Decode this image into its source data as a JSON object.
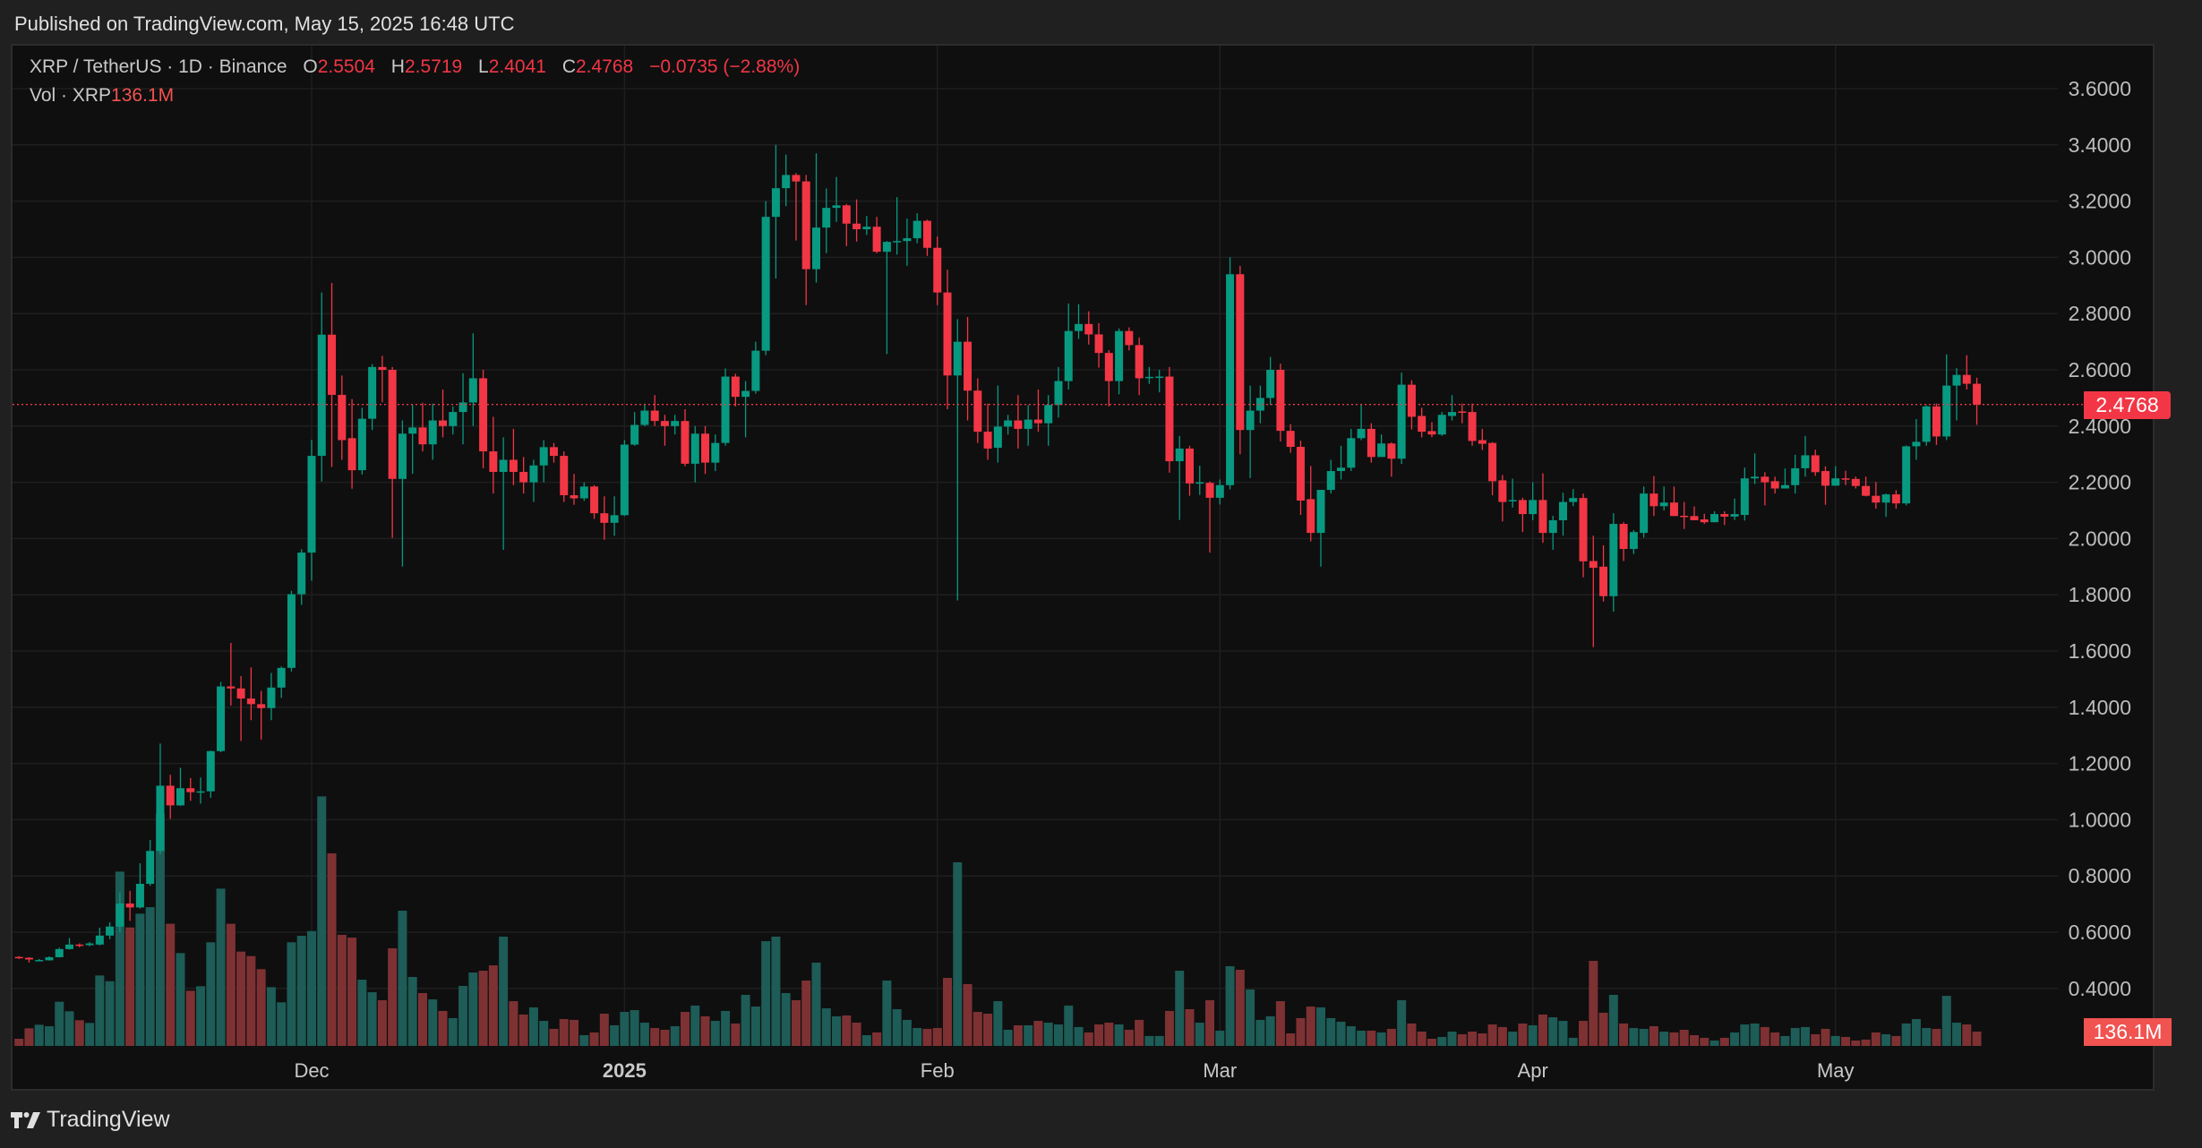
{
  "header": {
    "published": "Published on TradingView.com, May 15, 2025 16:48 UTC"
  },
  "legend": {
    "symbol": "XRP / TetherUS · 1D · Binance",
    "o_label": "O",
    "o_value": "2.5504",
    "h_label": "H",
    "h_value": "2.5719",
    "l_label": "L",
    "l_value": "2.4041",
    "c_label": "C",
    "c_value": "2.4768",
    "change": "−0.0735 (−2.88%)",
    "vol_label": "Vol · XRP",
    "vol_value": "136.1M"
  },
  "price_tag": "2.4768",
  "vol_tag": "136.1M",
  "footer": {
    "brand": "TradingView"
  },
  "colors": {
    "up": "#089981",
    "down": "#f23645",
    "vol_up": "#1d5c57",
    "vol_down": "#7e3133",
    "grid": "#1f1f1f"
  },
  "chart_data": {
    "type": "candlestick",
    "title": "XRP / TetherUS · 1D · Binance",
    "ylim": [
      0.3,
      3.7
    ],
    "y_ticks": [
      "3.6000",
      "3.4000",
      "3.2000",
      "3.0000",
      "2.8000",
      "2.6000",
      "2.4000",
      "2.2000",
      "2.0000",
      "1.8000",
      "1.6000",
      "1.4000",
      "1.2000",
      "1.0000",
      "0.8000",
      "0.6000",
      "0.4000"
    ],
    "x_ticks": [
      {
        "label": "Dec",
        "index": 29,
        "bold": false
      },
      {
        "label": "2025",
        "index": 60,
        "bold": true
      },
      {
        "label": "Feb",
        "index": 91,
        "bold": false
      },
      {
        "label": "Mar",
        "index": 119,
        "bold": false
      },
      {
        "label": "Apr",
        "index": 150,
        "bold": false
      },
      {
        "label": "May",
        "index": 180,
        "bold": false
      }
    ],
    "last_price": 2.4768,
    "ohlc": [
      [
        0.512,
        0.515,
        0.505,
        0.509
      ],
      [
        0.509,
        0.511,
        0.492,
        0.503
      ],
      [
        0.5,
        0.505,
        0.497,
        0.501
      ],
      [
        0.5,
        0.514,
        0.499,
        0.511
      ],
      [
        0.511,
        0.545,
        0.51,
        0.54
      ],
      [
        0.54,
        0.579,
        0.538,
        0.556
      ],
      [
        0.556,
        0.56,
        0.546,
        0.554
      ],
      [
        0.554,
        0.565,
        0.55,
        0.56
      ],
      [
        0.556,
        0.616,
        0.553,
        0.588
      ],
      [
        0.588,
        0.635,
        0.575,
        0.62
      ],
      [
        0.62,
        0.741,
        0.599,
        0.702
      ],
      [
        0.702,
        0.747,
        0.64,
        0.688
      ],
      [
        0.688,
        0.845,
        0.684,
        0.772
      ],
      [
        0.772,
        0.928,
        0.765,
        0.889
      ],
      [
        0.889,
        1.271,
        0.878,
        1.121
      ],
      [
        1.121,
        1.16,
        1.003,
        1.051
      ],
      [
        1.051,
        1.185,
        1.049,
        1.112
      ],
      [
        1.112,
        1.148,
        1.067,
        1.098
      ],
      [
        1.098,
        1.15,
        1.057,
        1.101
      ],
      [
        1.101,
        1.246,
        1.078,
        1.244
      ],
      [
        1.244,
        1.49,
        1.24,
        1.474
      ],
      [
        1.474,
        1.629,
        1.406,
        1.467
      ],
      [
        1.467,
        1.511,
        1.28,
        1.431
      ],
      [
        1.431,
        1.542,
        1.354,
        1.411
      ],
      [
        1.411,
        1.458,
        1.285,
        1.397
      ],
      [
        1.397,
        1.522,
        1.354,
        1.47
      ],
      [
        1.47,
        1.545,
        1.433,
        1.54
      ],
      [
        1.54,
        1.814,
        1.527,
        1.802
      ],
      [
        1.802,
        1.962,
        1.764,
        1.95
      ],
      [
        1.95,
        2.351,
        1.85,
        2.294
      ],
      [
        2.294,
        2.875,
        2.203,
        2.725
      ],
      [
        2.725,
        2.909,
        2.255,
        2.511
      ],
      [
        2.511,
        2.58,
        2.28,
        2.35
      ],
      [
        2.357,
        2.496,
        2.177,
        2.243
      ],
      [
        2.243,
        2.465,
        2.228,
        2.426
      ],
      [
        2.426,
        2.62,
        2.386,
        2.61
      ],
      [
        2.61,
        2.65,
        2.485,
        2.6
      ],
      [
        2.6,
        2.61,
        2.002,
        2.212
      ],
      [
        2.212,
        2.42,
        1.9,
        2.373
      ],
      [
        2.373,
        2.475,
        2.23,
        2.395
      ],
      [
        2.395,
        2.483,
        2.31,
        2.335
      ],
      [
        2.335,
        2.48,
        2.28,
        2.42
      ],
      [
        2.42,
        2.53,
        2.36,
        2.4
      ],
      [
        2.4,
        2.47,
        2.37,
        2.45
      ],
      [
        2.45,
        2.588,
        2.335,
        2.484
      ],
      [
        2.484,
        2.73,
        2.4,
        2.57
      ],
      [
        2.57,
        2.6,
        2.25,
        2.31
      ],
      [
        2.31,
        2.433,
        2.16,
        2.237
      ],
      [
        2.237,
        2.36,
        1.96,
        2.28
      ],
      [
        2.28,
        2.39,
        2.19,
        2.237
      ],
      [
        2.237,
        2.29,
        2.16,
        2.2
      ],
      [
        2.2,
        2.28,
        2.13,
        2.26
      ],
      [
        2.26,
        2.35,
        2.2,
        2.325
      ],
      [
        2.325,
        2.34,
        2.27,
        2.294
      ],
      [
        2.294,
        2.31,
        2.13,
        2.154
      ],
      [
        2.154,
        2.23,
        2.12,
        2.143
      ],
      [
        2.143,
        2.2,
        2.134,
        2.185
      ],
      [
        2.185,
        2.19,
        2.07,
        2.09
      ],
      [
        2.09,
        2.15,
        1.996,
        2.056
      ],
      [
        2.056,
        2.15,
        2.01,
        2.083
      ],
      [
        2.083,
        2.35,
        2.08,
        2.334
      ],
      [
        2.334,
        2.45,
        2.33,
        2.404
      ],
      [
        2.404,
        2.48,
        2.4,
        2.455
      ],
      [
        2.455,
        2.51,
        2.4,
        2.418
      ],
      [
        2.418,
        2.44,
        2.33,
        2.4
      ],
      [
        2.4,
        2.44,
        2.37,
        2.418
      ],
      [
        2.418,
        2.46,
        2.257,
        2.266
      ],
      [
        2.266,
        2.4,
        2.2,
        2.373
      ],
      [
        2.373,
        2.4,
        2.23,
        2.27
      ],
      [
        2.27,
        2.37,
        2.24,
        2.34
      ],
      [
        2.34,
        2.605,
        2.33,
        2.576
      ],
      [
        2.576,
        2.586,
        2.47,
        2.504
      ],
      [
        2.504,
        2.56,
        2.36,
        2.525
      ],
      [
        2.525,
        2.7,
        2.515,
        2.668
      ],
      [
        2.668,
        3.2,
        2.652,
        3.144
      ],
      [
        3.144,
        3.4,
        2.925,
        3.246
      ],
      [
        3.246,
        3.365,
        3.182,
        3.293
      ],
      [
        3.293,
        3.3,
        3.06,
        3.27
      ],
      [
        3.27,
        3.293,
        2.83,
        2.958
      ],
      [
        2.958,
        3.37,
        2.91,
        3.106
      ],
      [
        3.106,
        3.245,
        3.015,
        3.176
      ],
      [
        3.176,
        3.286,
        3.126,
        3.185
      ],
      [
        3.185,
        3.19,
        3.04,
        3.12
      ],
      [
        3.12,
        3.206,
        3.056,
        3.1
      ],
      [
        3.1,
        3.147,
        3.08,
        3.109
      ],
      [
        3.109,
        3.144,
        3.015,
        3.02
      ],
      [
        3.02,
        3.058,
        2.656,
        3.055
      ],
      [
        3.056,
        3.214,
        3.01,
        3.058
      ],
      [
        3.058,
        3.138,
        2.97,
        3.068
      ],
      [
        3.068,
        3.157,
        3.05,
        3.13
      ],
      [
        3.13,
        3.134,
        3.005,
        3.034
      ],
      [
        3.034,
        3.074,
        2.83,
        2.875
      ],
      [
        2.875,
        2.956,
        2.46,
        2.58
      ],
      [
        2.58,
        2.78,
        1.78,
        2.7
      ],
      [
        2.7,
        2.788,
        2.42,
        2.526
      ],
      [
        2.526,
        2.57,
        2.34,
        2.38
      ],
      [
        2.38,
        2.48,
        2.28,
        2.32
      ],
      [
        2.323,
        2.544,
        2.27,
        2.398
      ],
      [
        2.398,
        2.44,
        2.37,
        2.42
      ],
      [
        2.42,
        2.51,
        2.32,
        2.39
      ],
      [
        2.39,
        2.475,
        2.33,
        2.423
      ],
      [
        2.423,
        2.53,
        2.38,
        2.41
      ],
      [
        2.41,
        2.51,
        2.33,
        2.475
      ],
      [
        2.475,
        2.61,
        2.43,
        2.56
      ],
      [
        2.56,
        2.836,
        2.53,
        2.738
      ],
      [
        2.738,
        2.833,
        2.71,
        2.763
      ],
      [
        2.763,
        2.808,
        2.69,
        2.726
      ],
      [
        2.726,
        2.766,
        2.608,
        2.66
      ],
      [
        2.66,
        2.67,
        2.47,
        2.56
      ],
      [
        2.56,
        2.747,
        2.513,
        2.738
      ],
      [
        2.738,
        2.751,
        2.669,
        2.688
      ],
      [
        2.688,
        2.715,
        2.51,
        2.57
      ],
      [
        2.574,
        2.61,
        2.55,
        2.575
      ],
      [
        2.575,
        2.6,
        2.52,
        2.576
      ],
      [
        2.576,
        2.61,
        2.234,
        2.275
      ],
      [
        2.275,
        2.365,
        2.066,
        2.32
      ],
      [
        2.32,
        2.33,
        2.152,
        2.196
      ],
      [
        2.198,
        2.259,
        2.155,
        2.2
      ],
      [
        2.198,
        2.203,
        1.95,
        2.145
      ],
      [
        2.145,
        2.21,
        2.121,
        2.19
      ],
      [
        2.19,
        3.0,
        2.175,
        2.94
      ],
      [
        2.94,
        2.97,
        2.3,
        2.386
      ],
      [
        2.386,
        2.544,
        2.215,
        2.455
      ],
      [
        2.455,
        2.544,
        2.41,
        2.5
      ],
      [
        2.5,
        2.646,
        2.475,
        2.6
      ],
      [
        2.6,
        2.622,
        2.345,
        2.383
      ],
      [
        2.383,
        2.407,
        2.305,
        2.326
      ],
      [
        2.326,
        2.348,
        2.084,
        2.135
      ],
      [
        2.14,
        2.258,
        1.99,
        2.02
      ],
      [
        2.02,
        2.173,
        1.9,
        2.173
      ],
      [
        2.173,
        2.28,
        2.16,
        2.24
      ],
      [
        2.24,
        2.33,
        2.21,
        2.252
      ],
      [
        2.252,
        2.39,
        2.24,
        2.357
      ],
      [
        2.357,
        2.476,
        2.35,
        2.39
      ],
      [
        2.39,
        2.41,
        2.27,
        2.29
      ],
      [
        2.29,
        2.37,
        2.29,
        2.338
      ],
      [
        2.338,
        2.342,
        2.22,
        2.284
      ],
      [
        2.284,
        2.59,
        2.265,
        2.547
      ],
      [
        2.547,
        2.563,
        2.388,
        2.433
      ],
      [
        2.436,
        2.465,
        2.36,
        2.38
      ],
      [
        2.382,
        2.414,
        2.36,
        2.37
      ],
      [
        2.37,
        2.45,
        2.365,
        2.44
      ],
      [
        2.436,
        2.51,
        2.42,
        2.45
      ],
      [
        2.452,
        2.48,
        2.41,
        2.45
      ],
      [
        2.45,
        2.48,
        2.33,
        2.347
      ],
      [
        2.35,
        2.39,
        2.315,
        2.337
      ],
      [
        2.34,
        2.343,
        2.154,
        2.204
      ],
      [
        2.207,
        2.226,
        2.061,
        2.13
      ],
      [
        2.136,
        2.213,
        2.11,
        2.137
      ],
      [
        2.137,
        2.145,
        2.023,
        2.087
      ],
      [
        2.087,
        2.2,
        2.065,
        2.137
      ],
      [
        2.137,
        2.232,
        1.985,
        2.02
      ],
      [
        2.02,
        2.081,
        1.96,
        2.065
      ],
      [
        2.065,
        2.163,
        2.01,
        2.13
      ],
      [
        2.13,
        2.176,
        2.115,
        2.144
      ],
      [
        2.144,
        2.16,
        1.862,
        1.919
      ],
      [
        1.92,
        2.01,
        1.614,
        1.896
      ],
      [
        1.9,
        1.976,
        1.776,
        1.795
      ],
      [
        1.795,
        2.09,
        1.74,
        2.052
      ],
      [
        2.052,
        2.058,
        1.92,
        1.963
      ],
      [
        1.963,
        2.03,
        1.945,
        2.023
      ],
      [
        2.02,
        2.185,
        2.003,
        2.16
      ],
      [
        2.16,
        2.222,
        2.08,
        2.115
      ],
      [
        2.115,
        2.185,
        2.1,
        2.128
      ],
      [
        2.128,
        2.185,
        2.08,
        2.08
      ],
      [
        2.081,
        2.13,
        2.034,
        2.08
      ],
      [
        2.08,
        2.114,
        2.066,
        2.065
      ],
      [
        2.068,
        2.088,
        2.052,
        2.058
      ],
      [
        2.058,
        2.097,
        2.058,
        2.087
      ],
      [
        2.087,
        2.097,
        2.048,
        2.078
      ],
      [
        2.078,
        2.142,
        2.066,
        2.087
      ],
      [
        2.084,
        2.252,
        2.064,
        2.214
      ],
      [
        2.214,
        2.303,
        2.194,
        2.22
      ],
      [
        2.22,
        2.236,
        2.118,
        2.2
      ],
      [
        2.204,
        2.22,
        2.16,
        2.178
      ],
      [
        2.178,
        2.249,
        2.178,
        2.19
      ],
      [
        2.19,
        2.298,
        2.16,
        2.25
      ],
      [
        2.25,
        2.365,
        2.22,
        2.296
      ],
      [
        2.296,
        2.316,
        2.223,
        2.236
      ],
      [
        2.24,
        2.257,
        2.12,
        2.188
      ],
      [
        2.188,
        2.257,
        2.188,
        2.214
      ],
      [
        2.214,
        2.241,
        2.19,
        2.212
      ],
      [
        2.212,
        2.22,
        2.178,
        2.187
      ],
      [
        2.187,
        2.22,
        2.15,
        2.152
      ],
      [
        2.152,
        2.201,
        2.106,
        2.128
      ],
      [
        2.128,
        2.16,
        2.077,
        2.157
      ],
      [
        2.157,
        2.172,
        2.106,
        2.125
      ],
      [
        2.125,
        2.331,
        2.118,
        2.328
      ],
      [
        2.328,
        2.425,
        2.28,
        2.344
      ],
      [
        2.344,
        2.474,
        2.33,
        2.47
      ],
      [
        2.47,
        2.48,
        2.333,
        2.363
      ],
      [
        2.363,
        2.655,
        2.35,
        2.544
      ],
      [
        2.544,
        2.606,
        2.42,
        2.582
      ],
      [
        2.582,
        2.652,
        2.53,
        2.5504
      ],
      [
        2.5504,
        2.5719,
        2.4041,
        2.4768
      ]
    ],
    "volume_m": [
      68,
      167,
      201,
      187,
      420,
      329,
      244,
      218,
      669,
      615,
      1656,
      1125,
      1256,
      1318,
      2208,
      1160,
      882,
      524,
      567,
      984,
      1494,
      1160,
      896,
      853,
      729,
      558,
      414,
      984,
      1046,
      1091,
      2370,
      1829,
      1055,
      1029,
      629,
      510,
      434,
      927,
      1284,
      655,
      502,
      442,
      332,
      264,
      570,
      697,
      714,
      765,
      1038,
      425,
      298,
      366,
      238,
      162,
      255,
      247,
      102,
      128,
      306,
      196,
      323,
      340,
      221,
      170,
      153,
      187,
      323,
      383,
      281,
      238,
      332,
      213,
      485,
      374,
      995,
      1038,
      502,
      434,
      621,
      791,
      357,
      281,
      289,
      221,
      102,
      128,
      621,
      349,
      247,
      170,
      162,
      170,
      646,
      1744,
      587,
      323,
      306,
      425,
      153,
      196,
      196,
      238,
      221,
      204,
      383,
      179,
      128,
      204,
      221,
      204,
      153,
      247,
      94,
      94,
      332,
      714,
      349,
      221,
      434,
      145,
      757,
      723,
      536,
      247,
      281,
      425,
      119,
      264,
      374,
      366,
      264,
      230,
      187,
      145,
      145,
      128,
      162,
      434,
      213,
      136,
      68,
      85,
      136,
      111,
      136,
      119,
      204,
      179,
      136,
      213,
      196,
      298,
      272,
      238,
      77,
      238,
      808,
      315,
      485,
      213,
      170,
      162,
      187,
      136,
      128,
      153,
      102,
      77,
      51,
      77,
      128,
      204,
      213,
      179,
      128,
      94,
      170,
      179,
      111,
      162,
      94,
      85,
      51,
      60,
      128,
      111,
      94,
      213,
      255,
      170,
      162,
      476,
      221,
      204,
      136.1
    ]
  }
}
